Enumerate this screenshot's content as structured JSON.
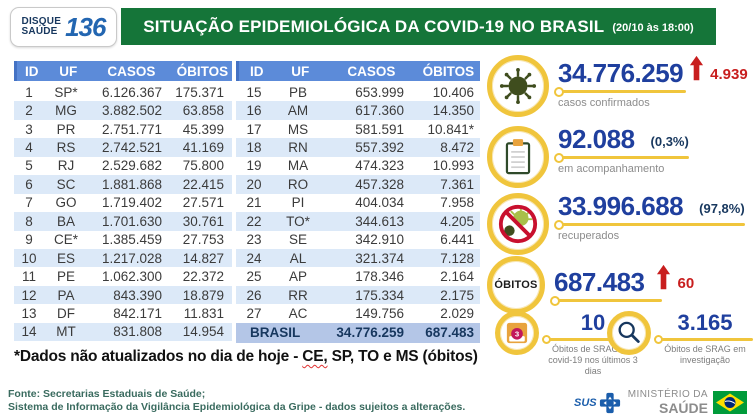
{
  "header": {
    "logo": {
      "line1": "DISQUE",
      "line2": "SAÚDE",
      "number": "136"
    },
    "title": "SITUAÇÃO EPIDEMIOLÓGICA DA COVID-19 NO BRASIL",
    "timestamp": "(20/10 às 18:00)"
  },
  "table": {
    "headers": [
      "ID",
      "UF",
      "CASOS",
      "ÓBITOS"
    ],
    "left_rows": [
      [
        "1",
        "SP*",
        "6.126.367",
        "175.371"
      ],
      [
        "2",
        "MG",
        "3.882.502",
        "63.858"
      ],
      [
        "3",
        "PR",
        "2.751.771",
        "45.399"
      ],
      [
        "4",
        "RS",
        "2.742.521",
        "41.169"
      ],
      [
        "5",
        "RJ",
        "2.529.682",
        "75.800"
      ],
      [
        "6",
        "SC",
        "1.881.868",
        "22.415"
      ],
      [
        "7",
        "GO",
        "1.719.402",
        "27.571"
      ],
      [
        "8",
        "BA",
        "1.701.630",
        "30.761"
      ],
      [
        "9",
        "CE*",
        "1.385.459",
        "27.753"
      ],
      [
        "10",
        "ES",
        "1.217.028",
        "14.827"
      ],
      [
        "11",
        "PE",
        "1.062.300",
        "22.372"
      ],
      [
        "12",
        "PA",
        "843.390",
        "18.879"
      ],
      [
        "13",
        "DF",
        "842.171",
        "11.831"
      ],
      [
        "14",
        "MT",
        "831.808",
        "14.954"
      ]
    ],
    "right_rows": [
      [
        "15",
        "PB",
        "653.999",
        "10.406"
      ],
      [
        "16",
        "AM",
        "617.360",
        "14.350"
      ],
      [
        "17",
        "MS",
        "581.591",
        "10.841*"
      ],
      [
        "18",
        "RN",
        "557.392",
        "8.472"
      ],
      [
        "19",
        "MA",
        "474.323",
        "10.993"
      ],
      [
        "20",
        "RO",
        "457.328",
        "7.361"
      ],
      [
        "21",
        "PI",
        "404.034",
        "7.958"
      ],
      [
        "22",
        "TO*",
        "344.613",
        "4.205"
      ],
      [
        "23",
        "SE",
        "342.910",
        "6.441"
      ],
      [
        "24",
        "AL",
        "321.374",
        "7.128"
      ],
      [
        "25",
        "AP",
        "178.346",
        "2.164"
      ],
      [
        "26",
        "RR",
        "175.334",
        "2.175"
      ],
      [
        "27",
        "AC",
        "149.756",
        "2.029"
      ]
    ],
    "total_row": {
      "label": "BRASIL",
      "casos": "34.776.259",
      "obitos": "687.483"
    }
  },
  "stats": {
    "confirmed": {
      "value": "34.776.259",
      "delta": "4.939",
      "label": "casos confirmados",
      "icon": "virus-icon"
    },
    "monitoring": {
      "value": "92.088",
      "pct": "(0,3%)",
      "label": "em acompanhamento",
      "icon": "clipboard-icon"
    },
    "recovered": {
      "value": "33.996.688",
      "pct": "(97,8%)",
      "label": "recuperados",
      "icon": "no-virus-icon"
    },
    "deaths": {
      "badge": "ÓBITOS",
      "value": "687.483",
      "delta": "60"
    },
    "srag_recent": {
      "value": "10",
      "label": "Óbitos de SRAG por covid-19 nos últimos 3 dias",
      "icon": "calendar-icon"
    },
    "srag_investigation": {
      "value": "3.165",
      "label": "Óbitos de SRAG em investigação",
      "icon": "magnifier-icon"
    }
  },
  "footnote": {
    "part1": "*Dados não atualizados no dia de hoje - ",
    "highlight": "CE,",
    "part2": " SP, TO e MS (óbitos)"
  },
  "footer": {
    "source_line1": "Fonte: Secretarias Estaduais de Saúde;",
    "source_line2": "Sistema de Informação da Vigilância Epidemiológica da Gripe - dados sujeitos a alterações.",
    "sus_label": "SUS",
    "ministry_line1": "MINISTÉRIO DA",
    "ministry_line2": "SAÚDE"
  },
  "colors": {
    "banner_green": "#157539",
    "table_header_blue": "#5C8BD9",
    "row_stripe_blue": "#DCE9F8",
    "total_row_blue": "#B4C6E7",
    "stat_number_navy": "#1f3f9e",
    "accent_yellow": "#F0C53C",
    "alert_red": "#C81E1E",
    "footer_teal": "#3A6B5F"
  }
}
